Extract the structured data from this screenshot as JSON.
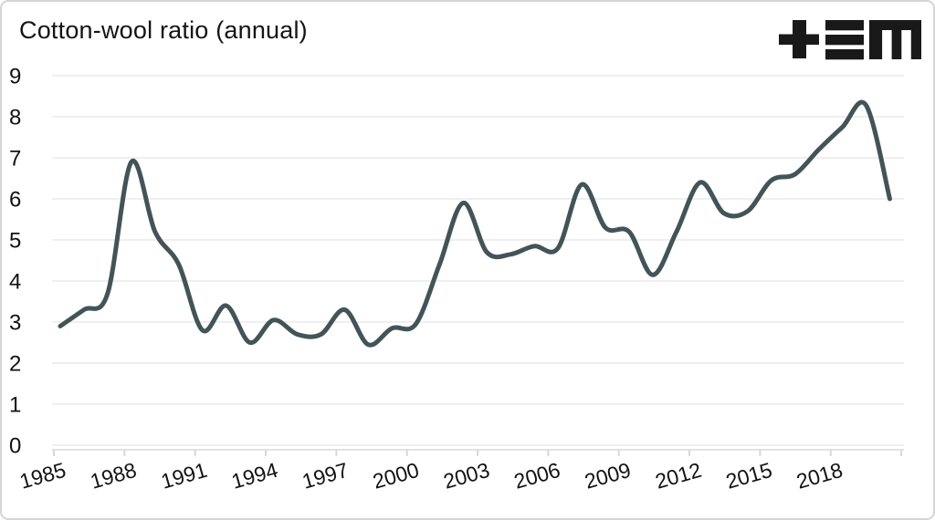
{
  "page": {
    "background": "#ffffff",
    "border_color": "#d5d5d5"
  },
  "header": {
    "title": "Cotton-wool ratio (annual)",
    "logo_icon": "plus-triple-bar-m-logo",
    "logo_color": "#191919"
  },
  "chart_data": {
    "type": "line",
    "title": "Cotton-wool ratio (annual)",
    "series_name": "Cotton-wool ratio",
    "x": [
      1985,
      1986,
      1987,
      1988,
      1989,
      1990,
      1991,
      1992,
      1993,
      1994,
      1995,
      1996,
      1997,
      1998,
      1999,
      2000,
      2001,
      2002,
      2003,
      2004,
      2005,
      2006,
      2007,
      2008,
      2009,
      2010,
      2011,
      2012,
      2013,
      2014,
      2015,
      2016,
      2017,
      2018,
      2019,
      2020
    ],
    "values": [
      2.9,
      3.3,
      3.7,
      6.9,
      5.2,
      4.4,
      2.8,
      3.4,
      2.5,
      3.05,
      2.7,
      2.7,
      3.3,
      2.45,
      2.85,
      2.95,
      4.4,
      5.9,
      4.7,
      4.65,
      4.85,
      4.8,
      6.35,
      5.3,
      5.2,
      4.15,
      5.2,
      6.4,
      5.65,
      5.7,
      6.45,
      6.6,
      7.2,
      7.75,
      8.28,
      6.0
    ],
    "xlabel": "",
    "ylabel": "",
    "ylim": [
      0,
      9
    ],
    "yticks": [
      9,
      8,
      7,
      6,
      5,
      4,
      3,
      2,
      1,
      0
    ],
    "xticks": [
      1985,
      1988,
      1991,
      1994,
      1997,
      2000,
      2003,
      2006,
      2009,
      2012,
      2015,
      2018
    ],
    "x_tick_marks": [
      1985,
      1988,
      1991,
      1994,
      1997,
      2000,
      2003,
      2006,
      2009,
      2012,
      2015,
      2018,
      2021
    ],
    "x_tick_rotation": -16,
    "grid": "horizontal",
    "legend": "none",
    "line_color": "#435458",
    "gridline_color": "#e5e5e5",
    "axis_color": "#d8d8d8",
    "label_color": "#121212"
  }
}
